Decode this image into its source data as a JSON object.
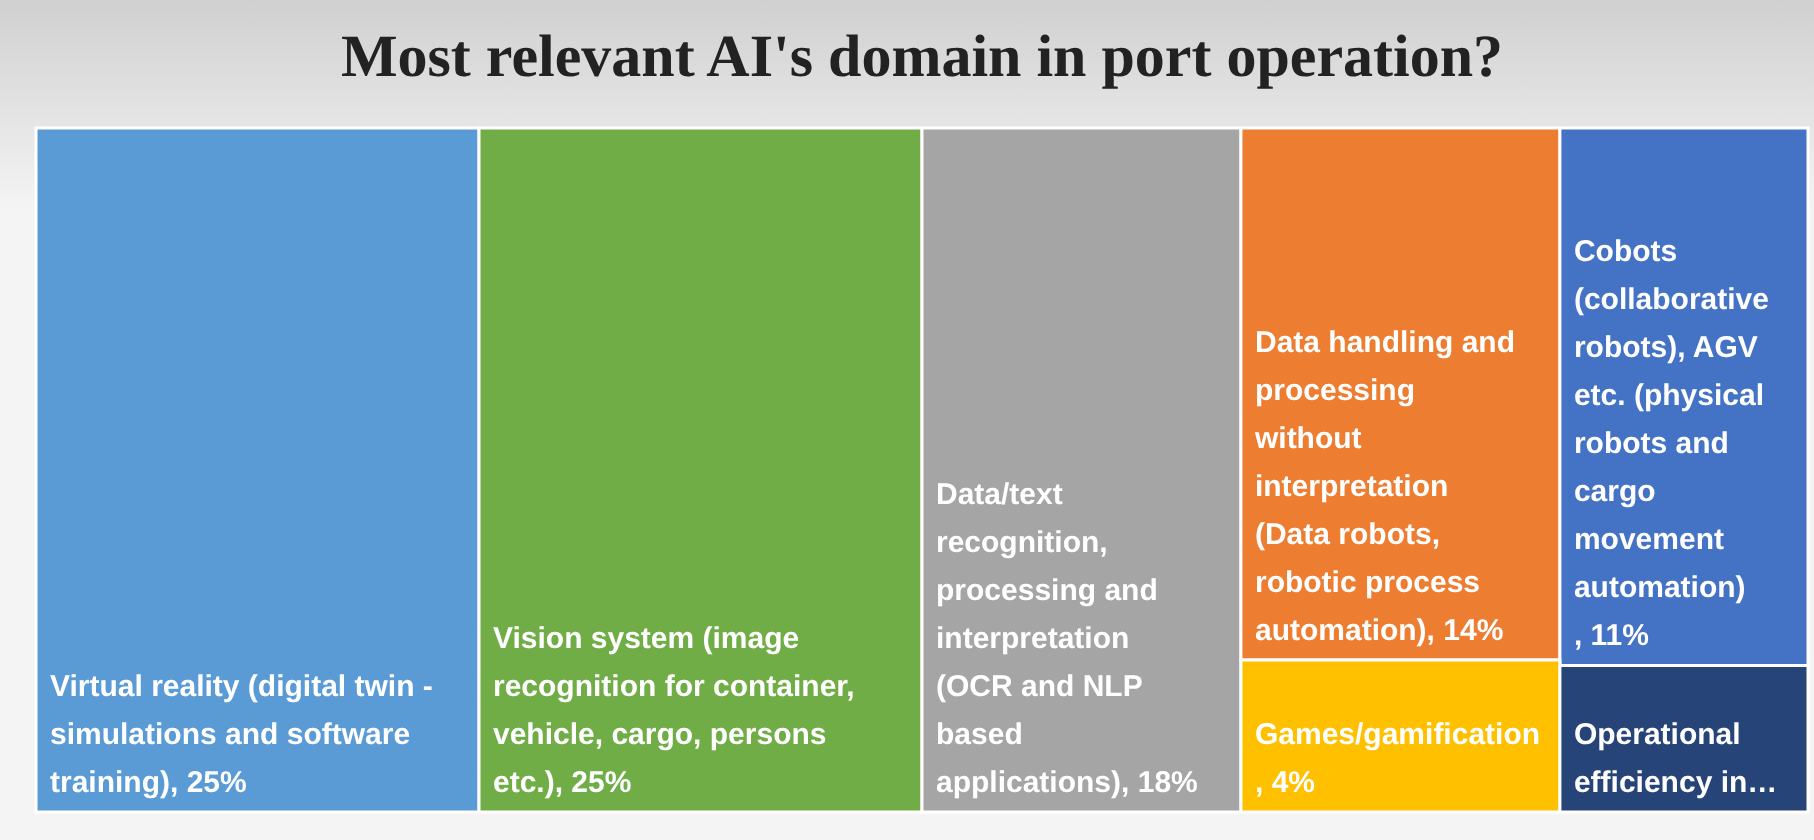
{
  "chart_data": {
    "type": "other",
    "title": "Most relevant AI's domain in port operation?",
    "categories": [
      "Virtual reality (digital twin - simulations and software training)",
      "Vision system (image recognition for container, vehicle, cargo, persons etc.)",
      "Data/text recognition, processing and interpretation (OCR and NLP based applications)",
      "Data handling and processing without interpretation (Data robots, robotic process automation)",
      "Cobots (collaborative robots), AGV etc. (physical robots and cargo movement automation) ",
      "Games/gamification",
      "Operational efficiency in…"
    ],
    "data_labels": true,
    "values": [
      25,
      25,
      18,
      14,
      11,
      4,
      null
    ],
    "value_labels": [
      ", 25%",
      ", 25%",
      ", 18%",
      ", 14%",
      ", 11%",
      ", 4%",
      null
    ],
    "colors": [
      "#5b9bd5",
      "#70ad47",
      "#a5a5a5",
      "#ed7d31",
      "#4472c4",
      "#ffc000",
      "#264478"
    ]
  }
}
